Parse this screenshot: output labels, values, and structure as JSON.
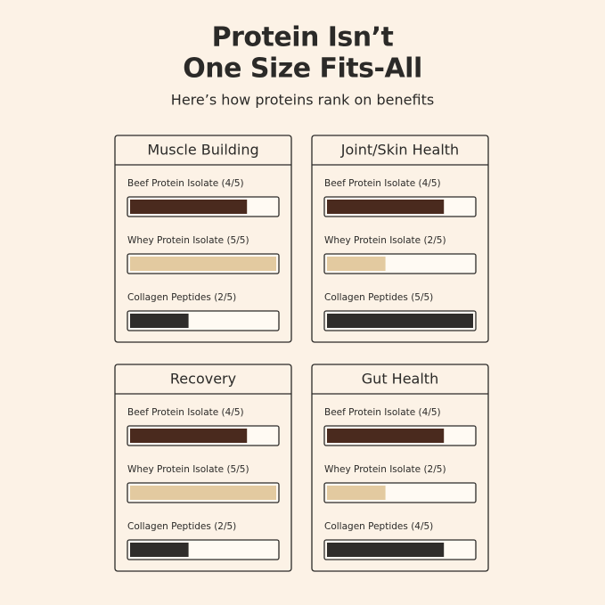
{
  "header": {
    "title_lines": [
      "Protein Isn’t",
      "One Size Fits-All"
    ],
    "subtitle": "Here’s how proteins rank on benefits"
  },
  "chart_data": [
    {
      "type": "bar",
      "orientation": "horizontal",
      "title": "Muscle Building",
      "categories": [
        "Beef Protein Isolate (4/5)",
        "Whey Protein Isolate (5/5)",
        "Collagen Peptides (2/5)"
      ],
      "values": [
        4,
        5,
        2
      ],
      "colors": [
        "#4a2a1e",
        "#e3caa0",
        "#2f2d2b"
      ],
      "xlim": [
        0,
        5
      ]
    },
    {
      "type": "bar",
      "orientation": "horizontal",
      "title": "Joint/Skin Health",
      "categories": [
        "Beef Protein Isolate (4/5)",
        "Whey Protein Isolate (2/5)",
        "Collagen Peptides (5/5)"
      ],
      "values": [
        4,
        2,
        5
      ],
      "colors": [
        "#4a2a1e",
        "#e3caa0",
        "#2f2d2b"
      ],
      "xlim": [
        0,
        5
      ]
    },
    {
      "type": "bar",
      "orientation": "horizontal",
      "title": "Recovery",
      "categories": [
        "Beef Protein Isolate (4/5)",
        "Whey Protein Isolate (5/5)",
        "Collagen Peptides (2/5)"
      ],
      "values": [
        4,
        5,
        2
      ],
      "colors": [
        "#4a2a1e",
        "#e3caa0",
        "#2f2d2b"
      ],
      "xlim": [
        0,
        5
      ]
    },
    {
      "type": "bar",
      "orientation": "horizontal",
      "title": "Gut Health",
      "categories": [
        "Beef Protein Isolate (4/5)",
        "Whey Protein Isolate (2/5)",
        "Collagen Peptides (4/5)"
      ],
      "values": [
        4,
        2,
        4
      ],
      "colors": [
        "#4a2a1e",
        "#e3caa0",
        "#2f2d2b"
      ],
      "xlim": [
        0,
        5
      ]
    }
  ]
}
